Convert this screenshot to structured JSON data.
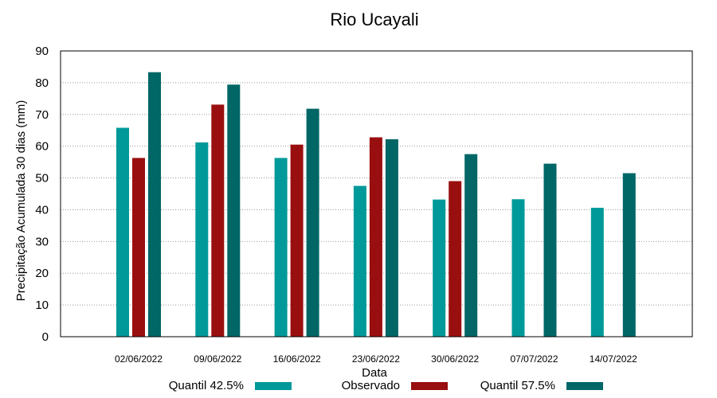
{
  "chart_data": {
    "type": "bar",
    "title": "Rio Ucayali",
    "xlabel": "Data",
    "ylabel": "Precipitação Acumulada 30 dias (mm)",
    "ylim": [
      0,
      90
    ],
    "yticks": [
      0,
      10,
      20,
      30,
      40,
      50,
      60,
      70,
      80,
      90
    ],
    "grid": true,
    "legend_position": "bottom",
    "categories": [
      "02/06/2022",
      "09/06/2022",
      "16/06/2022",
      "23/06/2022",
      "30/06/2022",
      "07/07/2022",
      "14/07/2022"
    ],
    "series": [
      {
        "name": "Quantil 42.5%",
        "color": "#009999",
        "values": [
          65.8,
          61.2,
          56.3,
          47.5,
          43.2,
          43.3,
          40.6
        ]
      },
      {
        "name": "Observado",
        "color": "#990f0f",
        "values": [
          56.3,
          73.1,
          60.5,
          62.8,
          49.0,
          null,
          null
        ]
      },
      {
        "name": "Quantil 57.5%",
        "color": "#006666",
        "values": [
          83.3,
          79.4,
          71.8,
          62.2,
          57.5,
          54.5,
          51.5
        ]
      }
    ]
  }
}
